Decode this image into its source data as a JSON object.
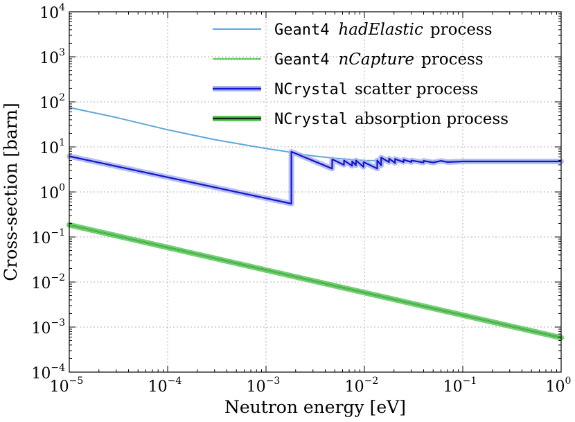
{
  "chart_data": {
    "type": "line",
    "xscale": "log",
    "yscale": "log",
    "xlim": [
      1e-05,
      1
    ],
    "ylim": [
      0.0001,
      10000
    ],
    "xlabel": "Neutron energy [eV]",
    "ylabel": "Cross-section [barn]",
    "grid": true,
    "legend_position": "top-right",
    "x_ticks": [
      {
        "base": "10",
        "exp": "−5"
      },
      {
        "base": "10",
        "exp": "−4"
      },
      {
        "base": "10",
        "exp": "−3"
      },
      {
        "base": "10",
        "exp": "−2"
      },
      {
        "base": "10",
        "exp": "−1"
      },
      {
        "base": "10",
        "exp": "0"
      }
    ],
    "y_ticks": [
      {
        "base": "10",
        "exp": "−4"
      },
      {
        "base": "10",
        "exp": "−3"
      },
      {
        "base": "10",
        "exp": "−2"
      },
      {
        "base": "10",
        "exp": "−1"
      },
      {
        "base": "10",
        "exp": "0"
      },
      {
        "base": "10",
        "exp": "1"
      },
      {
        "base": "10",
        "exp": "2"
      },
      {
        "base": "10",
        "exp": "3"
      },
      {
        "base": "10",
        "exp": "4"
      }
    ],
    "series": [
      {
        "name": "hadElastic",
        "legend_prefix": "Geant4",
        "legend_italic": "hadElastic",
        "legend_suffix": "process",
        "color": "#5ea7d8",
        "style": "thin",
        "x": [
          1e-05,
          3e-05,
          0.0001,
          0.0003,
          0.001,
          0.0015,
          0.002,
          0.003,
          0.005,
          0.008,
          0.01,
          0.02,
          0.05,
          0.1,
          1
        ],
        "y": [
          75,
          45,
          24,
          14.5,
          9.2,
          8.1,
          7.2,
          6.3,
          5.6,
          5.2,
          5.0,
          4.9,
          4.85,
          4.85,
          4.85
        ]
      },
      {
        "name": "nCapture",
        "legend_prefix": "Geant4",
        "legend_italic": "nCapture",
        "legend_suffix": "process",
        "color": "#4dbf4d",
        "style": "thin",
        "x": [
          1e-05,
          1
        ],
        "y": [
          0.185,
          0.00058
        ]
      },
      {
        "name": "NCrystal scatter",
        "legend_prefix": "NCrystal",
        "legend_italic": "",
        "legend_suffix": "scatter process",
        "color": "#1515cc",
        "halo": "#a8b4ee",
        "style": "thick",
        "x": [
          1e-05,
          0.0018,
          0.00181,
          0.0018101,
          0.0047,
          0.00471,
          0.0062,
          0.00621,
          0.0075,
          0.00751,
          0.0082,
          0.00821,
          0.0098,
          0.00981,
          0.0135,
          0.01351,
          0.0148,
          0.01481,
          0.0178,
          0.01781,
          0.0205,
          0.02051,
          0.025,
          0.02501,
          0.03,
          0.03001,
          0.04,
          0.04001,
          0.05,
          0.06,
          0.07,
          0.1,
          1
        ],
        "y": [
          6.2,
          0.55,
          0.55,
          7.8,
          3.3,
          5.3,
          4.0,
          5.0,
          3.8,
          4.8,
          3.9,
          5.0,
          3.6,
          4.6,
          3.3,
          5.0,
          3.9,
          5.8,
          4.6,
          5.5,
          4.4,
          5.4,
          4.6,
          5.2,
          4.6,
          5.0,
          4.5,
          4.9,
          4.5,
          4.9,
          4.6,
          4.75,
          4.75
        ]
      },
      {
        "name": "NCrystal absorption",
        "legend_prefix": "NCrystal",
        "legend_italic": "",
        "legend_suffix": "absorption process",
        "color": "#0a2a0a",
        "halo": "#5cc85c",
        "style": "thick",
        "x": [
          1e-05,
          1
        ],
        "y": [
          0.185,
          0.00058
        ]
      }
    ]
  }
}
